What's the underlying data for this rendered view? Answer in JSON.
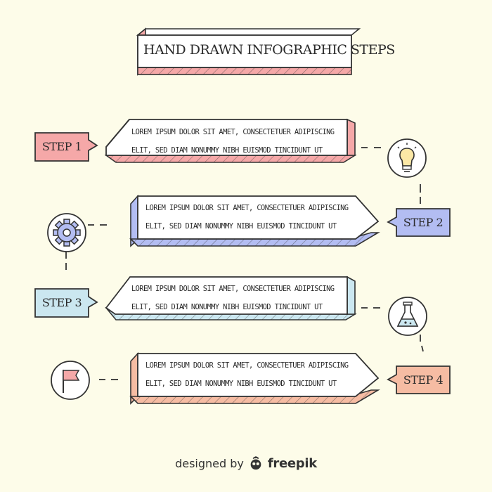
{
  "title": "Hand Drawn Infographic Steps",
  "colors": {
    "background": "#fdfce9",
    "pink": "#f5a8a8",
    "blue": "#b3bdf2",
    "cyan": "#cbe7f0",
    "orange": "#f6bca3",
    "outline": "#333333"
  },
  "steps": [
    {
      "label": "STEP 1",
      "text_line1": "LOREM IPSUM DOLOR SIT AMET, CONSECTETUER ADIPISCING",
      "text_line2": "ELIT, SED DIAM NONUMMY NIBH EUISMOD TINCIDUNT UT",
      "icon": "lightbulb-icon",
      "color": "#f5a8a8"
    },
    {
      "label": "STEP 2",
      "text_line1": "LOREM IPSUM DOLOR SIT AMET, CONSECTETUER ADIPISCING",
      "text_line2": "ELIT, SED DIAM NONUMMY NIBH EUISMOD TINCIDUNT UT",
      "icon": "gear-icon",
      "color": "#b3bdf2"
    },
    {
      "label": "STEP 3",
      "text_line1": "LOREM IPSUM DOLOR SIT AMET, CONSECTETUER ADIPISCING",
      "text_line2": "ELIT, SED DIAM NONUMMY NIBH EUISMOD TINCIDUNT UT",
      "icon": "flask-icon",
      "color": "#cbe7f0"
    },
    {
      "label": "STEP 4",
      "text_line1": "LOREM IPSUM DOLOR SIT AMET, CONSECTETUER ADIPISCING",
      "text_line2": "ELIT, SED DIAM NONUMMY NIBH EUISMOD TINCIDUNT UT",
      "icon": "flag-icon",
      "color": "#f6bca3"
    }
  ],
  "footer": {
    "designed_by": "designed by",
    "brand": "freepik",
    "icon": "freepik-logo-icon"
  }
}
